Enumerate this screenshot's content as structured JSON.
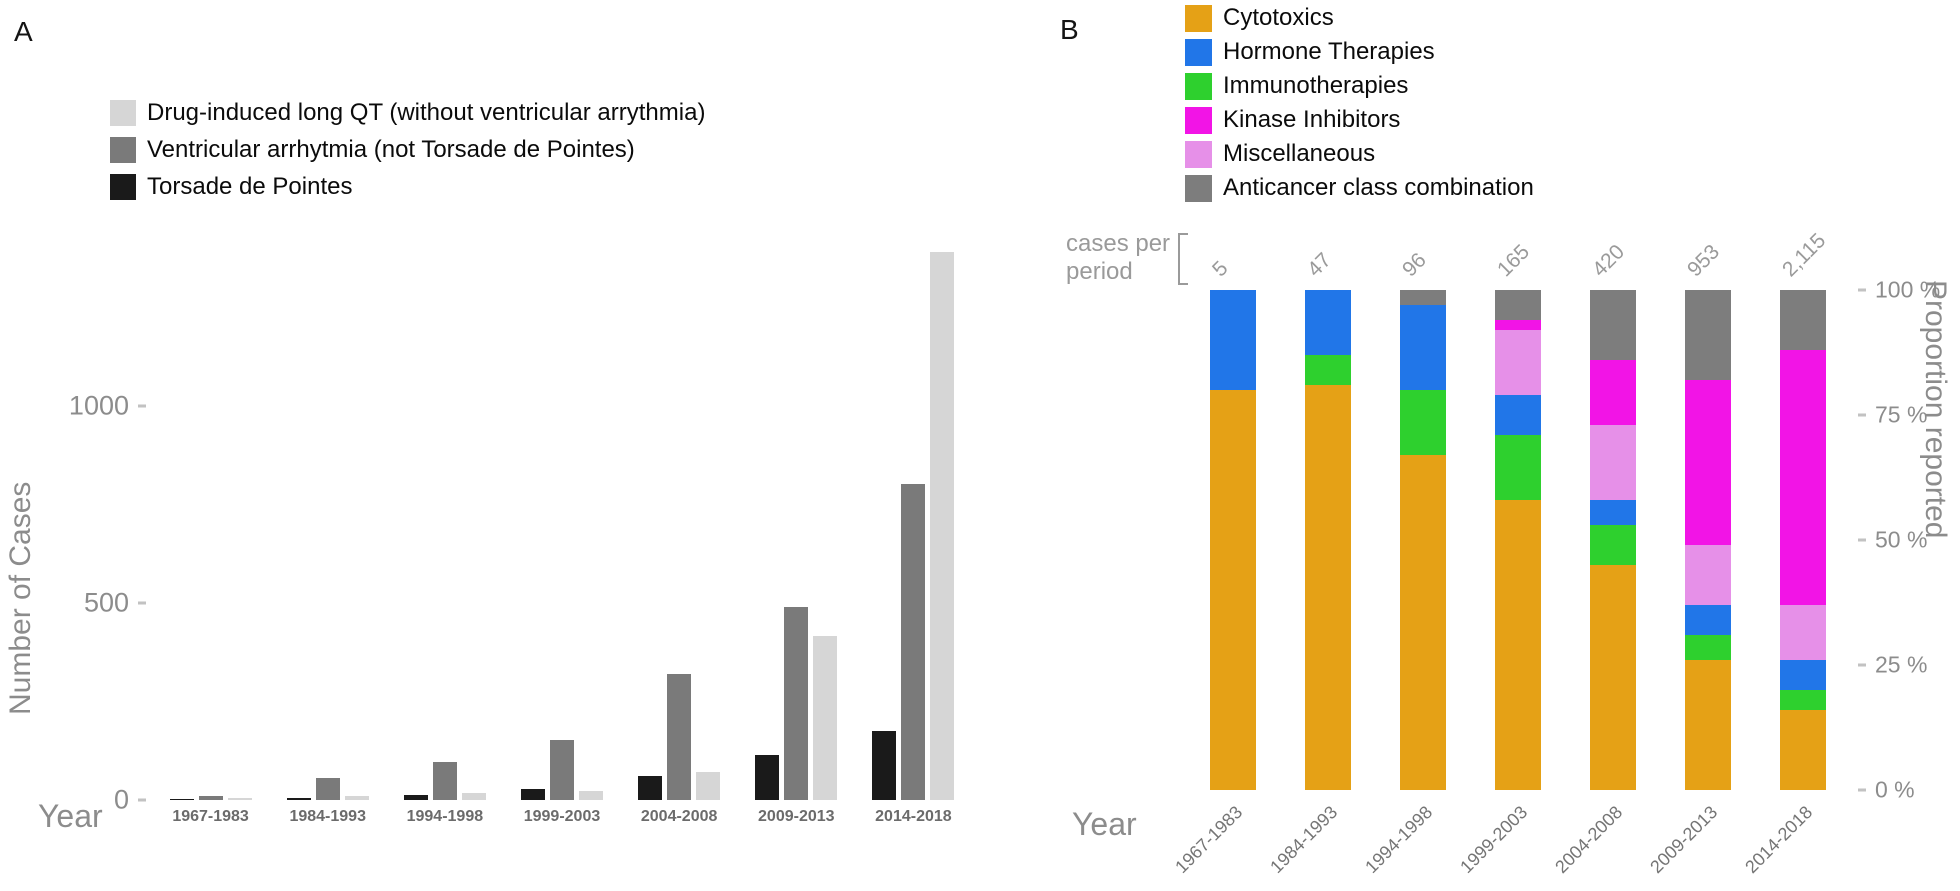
{
  "chart_data": [
    {
      "type": "bar",
      "panel_label": "A",
      "xlabel": "Year",
      "ylabel": "Number of Cases",
      "ylim": [
        0,
        1450
      ],
      "yticks": [
        0,
        500,
        1000
      ],
      "grid": false,
      "legend_position": "top-left",
      "categories": [
        "1967-1983",
        "1984-1993",
        "1994-1998",
        "1999-2003",
        "2004-2008",
        "2009-2013",
        "2014-2018"
      ],
      "legend": [
        {
          "label": "Drug-induced long QT (without ventricular arrythmia)",
          "color": "#d6d6d6"
        },
        {
          "label": "Ventricular arrhytmia (not Torsade de Pointes)",
          "color": "#7a7a7a"
        },
        {
          "label": "Torsade de Pointes",
          "color": "#1a1a1a"
        }
      ],
      "series": [
        {
          "name": "Torsade de Pointes",
          "color": "#1a1a1a",
          "values": [
            3,
            6,
            12,
            28,
            62,
            115,
            175
          ]
        },
        {
          "name": "Ventricular arrhytmia (not Torsade de Pointes)",
          "color": "#7a7a7a",
          "values": [
            10,
            56,
            96,
            152,
            320,
            490,
            800
          ]
        },
        {
          "name": "Drug-induced long QT (without ventricular arrythmia)",
          "color": "#d6d6d6",
          "values": [
            5,
            9,
            18,
            22,
            72,
            415,
            1390
          ]
        }
      ]
    },
    {
      "type": "bar-stacked-100",
      "panel_label": "B",
      "xlabel": "Year",
      "ylabel_right": "Proportion reported",
      "counts_label": [
        "cases per",
        "period"
      ],
      "counts": [
        "5",
        "47",
        "96",
        "165",
        "420",
        "953",
        "2,115"
      ],
      "yticks_right": [
        {
          "value": 100,
          "label": "100 %"
        },
        {
          "value": 75,
          "label": "75 %"
        },
        {
          "value": 50,
          "label": "50 %"
        },
        {
          "value": 25,
          "label": "25 %"
        },
        {
          "value": 0,
          "label": "0 %"
        }
      ],
      "categories": [
        "1967-1983",
        "1984-1993",
        "1994-1998",
        "1999-2003",
        "2004-2008",
        "2009-2013",
        "2014-2018"
      ],
      "legend": [
        {
          "label": "Cytotoxics",
          "color": "#e5a116"
        },
        {
          "label": "Hormone Therapies",
          "color": "#2176e8"
        },
        {
          "label": "Immunotherapies",
          "color": "#2ed02e"
        },
        {
          "label": "Kinase Inhibitors",
          "color": "#f214e6"
        },
        {
          "label": "Miscellaneous",
          "color": "#e690e8"
        },
        {
          "label": "Anticancer class combination",
          "color": "#7d7d7d"
        }
      ],
      "stack_order": "bottom-to-top",
      "series": [
        {
          "name": "Cytotoxics",
          "color": "#e5a116",
          "values": [
            80,
            81,
            67,
            58,
            45,
            26,
            16
          ]
        },
        {
          "name": "Immunotherapies",
          "color": "#2ed02e",
          "values": [
            0,
            6,
            13,
            13,
            8,
            5,
            4
          ]
        },
        {
          "name": "Hormone Therapies",
          "color": "#2176e8",
          "values": [
            20,
            13,
            17,
            8,
            5,
            6,
            6
          ]
        },
        {
          "name": "Miscellaneous",
          "color": "#e690e8",
          "values": [
            0,
            0,
            0,
            13,
            15,
            12,
            11
          ]
        },
        {
          "name": "Kinase Inhibitors",
          "color": "#f214e6",
          "values": [
            0,
            0,
            0,
            2,
            13,
            33,
            51
          ]
        },
        {
          "name": "Anticancer class combination",
          "color": "#7d7d7d",
          "values": [
            0,
            0,
            3,
            6,
            14,
            18,
            12
          ]
        }
      ]
    }
  ]
}
